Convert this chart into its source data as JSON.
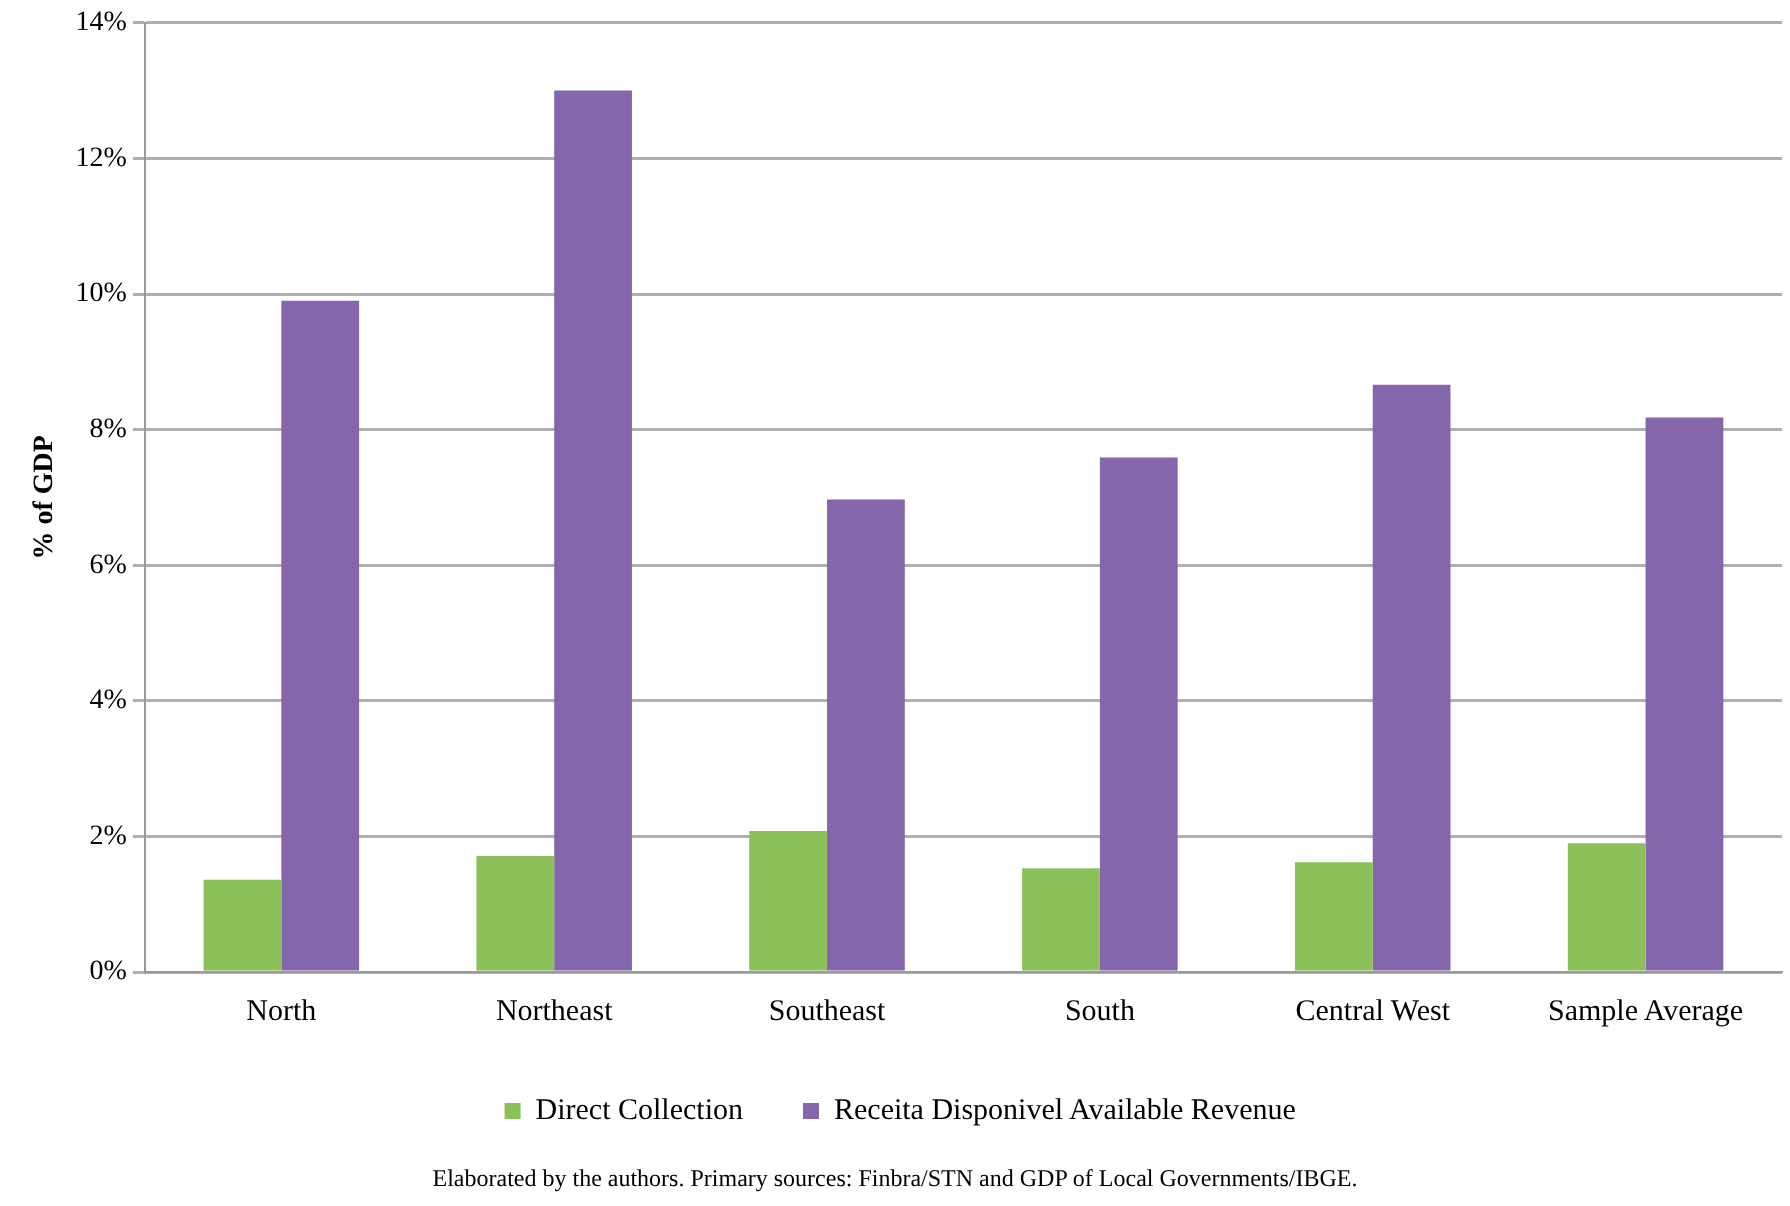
{
  "chart_data": {
    "type": "bar",
    "ylabel": "% of GDP",
    "categories": [
      "North",
      "Northeast",
      "Southeast",
      "South",
      "Central West",
      "Sample Average"
    ],
    "series": [
      {
        "name": "Direct Collection",
        "color": "#8bc05a",
        "values": [
          1.36,
          1.71,
          2.08,
          1.53,
          1.62,
          1.9
        ]
      },
      {
        "name": "Receita Disponivel Available Revenue",
        "color": "#8466ab",
        "values": [
          9.9,
          13.0,
          6.97,
          7.59,
          8.66,
          8.18
        ]
      }
    ],
    "ylim": [
      0,
      14
    ],
    "yticks": [
      {
        "value": 0,
        "label": "0%"
      },
      {
        "value": 2,
        "label": "2%"
      },
      {
        "value": 4,
        "label": "4%"
      },
      {
        "value": 6,
        "label": "6%"
      },
      {
        "value": 8,
        "label": "8%"
      },
      {
        "value": 10,
        "label": "10%"
      },
      {
        "value": 12,
        "label": "12%"
      },
      {
        "value": 14,
        "label": "14%"
      }
    ],
    "grid": "y",
    "legend": "bottom",
    "annotations": [
      "Elaborated by the authors. Primary sources: Finbra/STN and GDP of Local Governments/IBGE."
    ]
  }
}
